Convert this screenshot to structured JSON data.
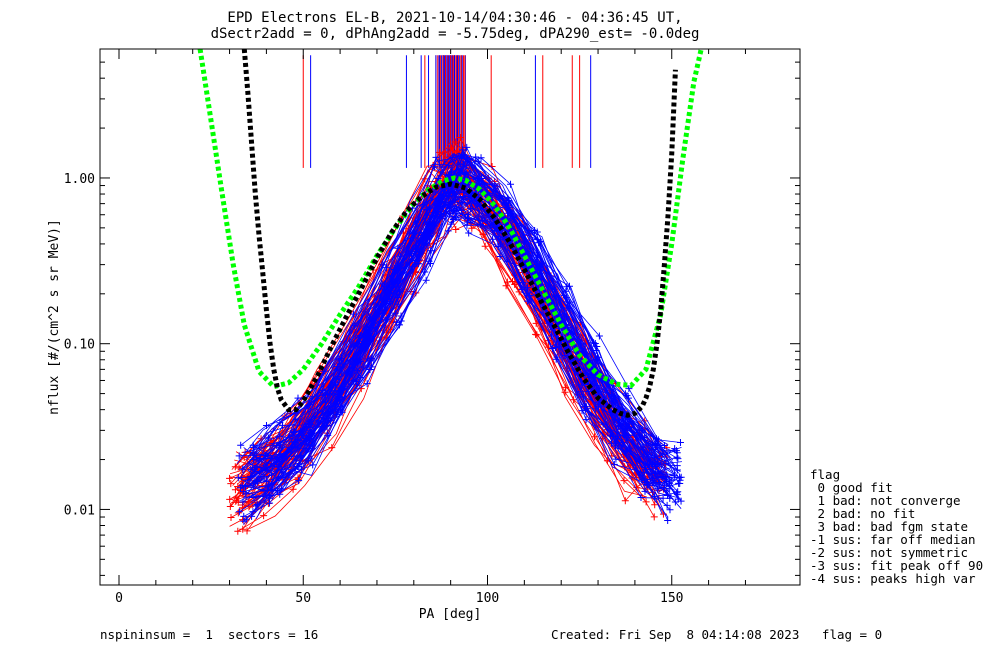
{
  "chart_data": {
    "type": "line",
    "title": "EPD Electrons EL-B, 2021-10-14/04:30:46 - 04:36:45 UT,",
    "subtitle": "dSectr2add = 0, dPhAng2add = -5.75deg, dPA290_est=  -0.0deg",
    "xlabel": "PA [deg]",
    "ylabel": "nflux [#/(cm^2 s sr MeV)]",
    "xlim": [
      -10,
      185
    ],
    "ylim": [
      0.0035,
      6.0
    ],
    "yscale": "log",
    "xticks": [
      0,
      50,
      100,
      150
    ],
    "xtick_labels": [
      "0",
      "50",
      "100",
      "150"
    ],
    "yticks": [
      0.01,
      0.1,
      1.0
    ],
    "ytick_labels": [
      "0.01",
      "0.10",
      "1.00"
    ],
    "grid": false,
    "series": [
      {
        "color": "#ff0000",
        "kind": "measured sweeps (pitch-angle distributions)",
        "x": [
          33,
          40,
          48,
          56,
          64,
          72,
          80,
          86,
          90,
          94,
          100,
          108,
          116,
          124,
          132,
          140,
          146
        ],
        "y": [
          0.013,
          0.016,
          0.024,
          0.042,
          0.085,
          0.18,
          0.38,
          0.72,
          0.96,
          0.85,
          0.64,
          0.35,
          0.16,
          0.075,
          0.036,
          0.02,
          0.016
        ]
      },
      {
        "color": "#0000ff",
        "kind": "measured sweeps (pitch-angle distributions)",
        "x": [
          35,
          42,
          50,
          58,
          66,
          74,
          82,
          88,
          92,
          96,
          104,
          112,
          120,
          128,
          136,
          144,
          150
        ],
        "y": [
          0.015,
          0.019,
          0.028,
          0.05,
          0.1,
          0.21,
          0.45,
          0.8,
          0.93,
          0.82,
          0.56,
          0.3,
          0.14,
          0.064,
          0.032,
          0.019,
          0.015
        ]
      },
      {
        "color": "#00ff00",
        "kind": "fit envelope",
        "x": [
          22,
          25,
          28,
          31,
          34,
          38,
          42,
          46,
          50,
          55,
          60,
          65,
          70,
          75,
          80,
          84,
          88,
          91,
          94,
          98,
          102,
          106,
          110,
          115,
          120,
          125,
          130,
          135,
          139,
          143,
          147,
          150,
          153,
          156,
          158
        ],
        "y": [
          6.0,
          2.2,
          0.8,
          0.3,
          0.13,
          0.068,
          0.055,
          0.058,
          0.07,
          0.1,
          0.15,
          0.22,
          0.34,
          0.5,
          0.7,
          0.85,
          0.96,
          1.0,
          0.97,
          0.85,
          0.68,
          0.5,
          0.34,
          0.21,
          0.13,
          0.085,
          0.065,
          0.057,
          0.056,
          0.07,
          0.15,
          0.4,
          1.3,
          3.8,
          6.0
        ]
      },
      {
        "color": "#000000",
        "kind": "fit envelope",
        "x": [
          34,
          35,
          36,
          37,
          38,
          39,
          40,
          41,
          42,
          43,
          44,
          46,
          48,
          50,
          54,
          58,
          62,
          66,
          70,
          74,
          78,
          82,
          86,
          90,
          94,
          98,
          102,
          106,
          110,
          114,
          118,
          122,
          126,
          130,
          134,
          136,
          138,
          140,
          142,
          143,
          144,
          145,
          146,
          147,
          148,
          149,
          150,
          151
        ],
        "y": [
          6.0,
          3.2,
          1.6,
          0.8,
          0.45,
          0.27,
          0.16,
          0.1,
          0.07,
          0.054,
          0.046,
          0.04,
          0.04,
          0.045,
          0.065,
          0.1,
          0.15,
          0.22,
          0.33,
          0.47,
          0.63,
          0.77,
          0.88,
          0.92,
          0.87,
          0.74,
          0.57,
          0.41,
          0.28,
          0.19,
          0.13,
          0.088,
          0.062,
          0.047,
          0.04,
          0.038,
          0.037,
          0.038,
          0.042,
          0.047,
          0.055,
          0.07,
          0.1,
          0.16,
          0.3,
          0.6,
          1.4,
          4.5
        ]
      }
    ],
    "vlines_red": [
      50,
      83,
      86,
      88,
      89,
      90,
      90.5,
      91,
      91.5,
      92,
      93,
      101,
      115,
      123,
      125
    ],
    "vlines_blue": [
      52,
      78,
      82,
      84,
      86,
      87,
      88,
      88.5,
      89,
      89.5,
      90,
      91,
      92,
      94,
      113,
      128
    ],
    "legend": {
      "title": "flag",
      "entries": [
        " 0 good fit",
        " 1 bad: not converge",
        " 2 bad: no fit",
        " 3 bad: bad fgm state",
        "-1 sus: far off median",
        "-2 sus: not symmetric",
        "-3 sus: fit peak off 90",
        "-4 sus: peaks high var"
      ],
      "placement": "right"
    }
  },
  "footer": {
    "left": "nspininsum =  1  sectors = 16",
    "right": "Created: Fri Sep  8 04:14:08 2023   flag = 0"
  }
}
